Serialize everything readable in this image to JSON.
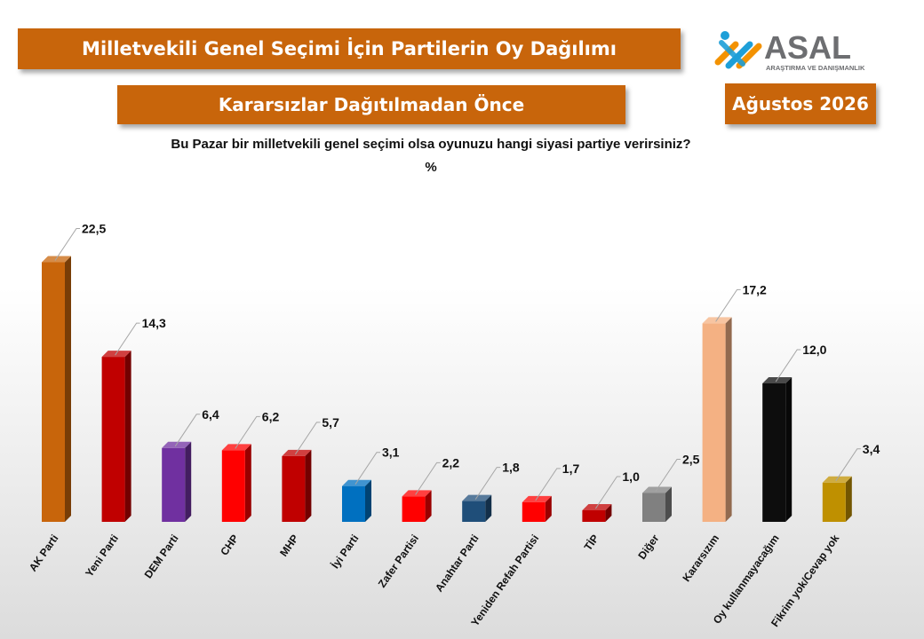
{
  "header": {
    "title": "Milletvekili Genel Seçimi İçin Partilerin Oy Dağılımı",
    "subtitle": "Kararsızlar Dağıtılmadan Önce",
    "date": "Ağustos 2026"
  },
  "logo": {
    "name": "ASAL",
    "tagline": "ARAŞTIRMA VE DANIŞMANLIK"
  },
  "chart_data": {
    "type": "bar",
    "title": "Bu Pazar bir milletvekili genel seçimi olsa oyunuzu hangi siyasi partiye verirsiniz?",
    "ylabel": "%",
    "ylim": [
      0,
      25
    ],
    "grid": false,
    "legend": "none",
    "categories": [
      "AK Parti",
      "Yeni Parti",
      "DEM Parti",
      "CHP",
      "MHP",
      "İyi Parti",
      "Zafer Partisi",
      "Anahtar Parti",
      "Yeniden Refah Partisi",
      "TİP",
      "Diğer",
      "Kararsızım",
      "Oy kullanmayacağım",
      "Fikrim yok/Cevap yok"
    ],
    "values": [
      22.5,
      14.3,
      6.4,
      6.2,
      5.7,
      3.1,
      2.2,
      1.8,
      1.7,
      1.0,
      2.5,
      17.2,
      12.0,
      3.4
    ],
    "value_labels": [
      "22,5",
      "14,3",
      "6,4",
      "6,2",
      "5,7",
      "3,1",
      "2,2",
      "1,8",
      "1,7",
      "1,0",
      "2,5",
      "17,2",
      "12,0",
      "3,4"
    ],
    "colors": [
      "#c8650b",
      "#c00000",
      "#7030a0",
      "#ff0000",
      "#c00000",
      "#0070c0",
      "#ff0000",
      "#1f4e79",
      "#ff0000",
      "#c00000",
      "#808080",
      "#f4b183",
      "#0d0d0d",
      "#bf9000"
    ]
  }
}
